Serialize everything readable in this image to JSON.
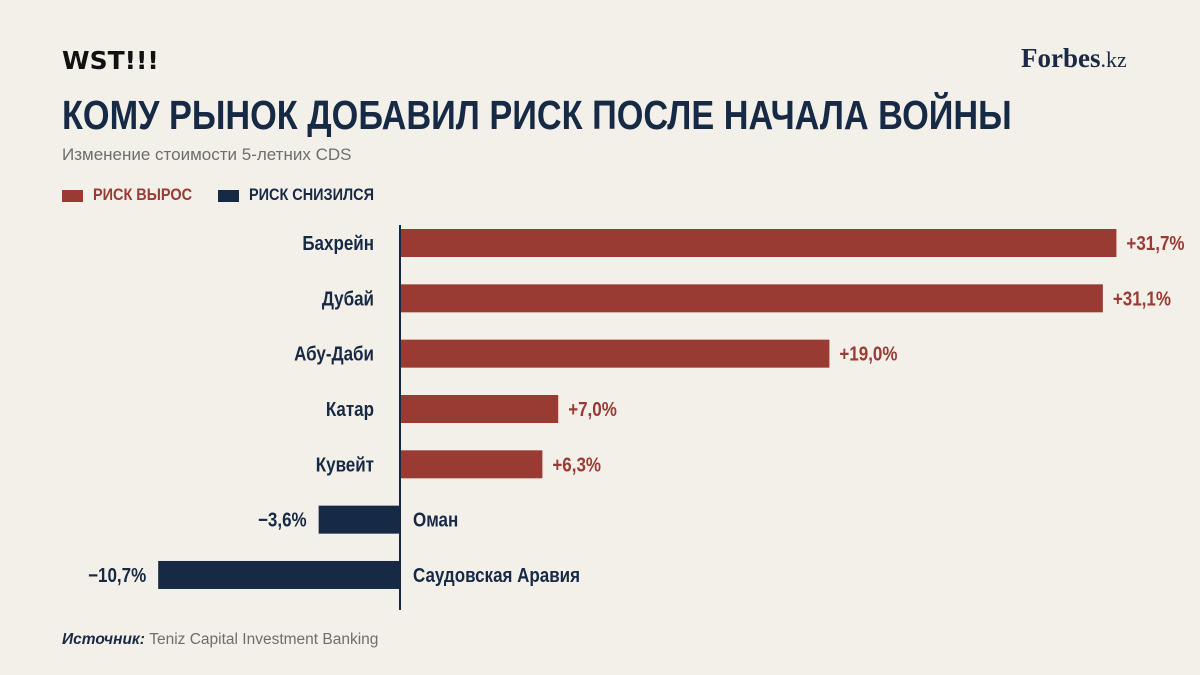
{
  "brand": {
    "left": "WST!!!",
    "right_name": "Forbes",
    "right_tld": ".kz"
  },
  "title": "КОМУ РЫНОК ДОБАВИЛ РИСК ПОСЛЕ НАЧАЛА ВОЙНЫ",
  "subtitle": "Изменение стоимости 5-летних CDS",
  "legend": [
    {
      "label": "РИСК ВЫРОС",
      "color": "#9a3b33"
    },
    {
      "label": "РИСК СНИЗИЛСЯ",
      "color": "#172a45"
    }
  ],
  "source": {
    "label": "Источник:",
    "text": "Teniz Capital Investment Banking"
  },
  "colors": {
    "positive": "#9a3b33",
    "negative": "#172a45",
    "axis": "#172a45"
  },
  "chart_data": {
    "type": "bar",
    "orientation": "horizontal",
    "categories": [
      "Бахрейн",
      "Дубай",
      "Абу-Даби",
      "Катар",
      "Кувейт",
      "Оман",
      "Саудовская Аравия"
    ],
    "values": [
      31.7,
      31.1,
      19.0,
      7.0,
      6.3,
      -3.6,
      -10.7
    ],
    "value_labels": [
      "+31,7%",
      "+31,1%",
      "+19,0%",
      "+7,0%",
      "+6,3%",
      "−3,6%",
      "−10,7%"
    ],
    "unit": "%",
    "xlim": [
      -10.7,
      31.7
    ],
    "grid": false,
    "legend_position": "top-left"
  }
}
